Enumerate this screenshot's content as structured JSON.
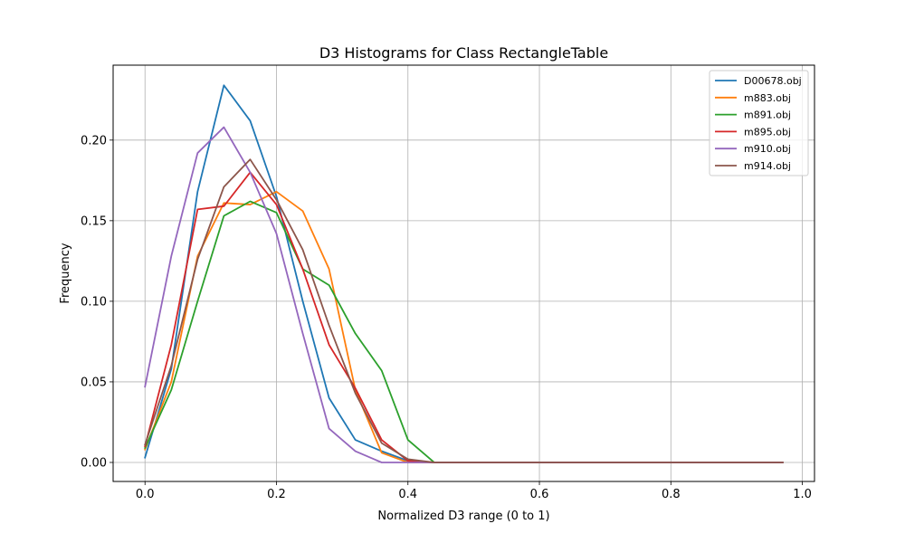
{
  "chart_data": {
    "type": "line",
    "title": "D3 Histograms for Class RectangleTable",
    "xlabel": "Normalized D3 range (0 to 1)",
    "ylabel": "Frequency",
    "xlim": [
      -0.0485,
      1.0185
    ],
    "ylim": [
      -0.0118,
      0.2465
    ],
    "xticks": [
      0.0,
      0.2,
      0.4,
      0.6,
      0.8,
      1.0
    ],
    "xtick_labels": [
      "0.0",
      "0.2",
      "0.4",
      "0.6",
      "0.8",
      "1.0"
    ],
    "yticks": [
      0.0,
      0.05,
      0.1,
      0.15,
      0.2
    ],
    "ytick_labels": [
      "0.00",
      "0.05",
      "0.10",
      "0.15",
      "0.20"
    ],
    "grid": true,
    "legend_position": "top-right",
    "x": [
      0.0,
      0.04,
      0.08,
      0.12,
      0.16,
      0.2,
      0.24,
      0.28,
      0.32,
      0.36,
      0.4,
      0.44,
      0.48,
      0.52,
      0.56,
      0.6,
      0.64,
      0.68,
      0.72,
      0.76,
      0.8,
      0.84,
      0.88,
      0.92,
      0.97
    ],
    "series": [
      {
        "name": "D00678.obj",
        "color": "#1f77b4",
        "values": [
          0.003,
          0.058,
          0.168,
          0.234,
          0.212,
          0.165,
          0.1,
          0.04,
          0.014,
          0.007,
          0.001,
          0,
          0,
          0,
          0,
          0,
          0,
          0,
          0,
          0,
          0,
          0,
          0,
          0,
          0
        ]
      },
      {
        "name": "m883.obj",
        "color": "#ff7f0e",
        "values": [
          0.008,
          0.05,
          0.128,
          0.161,
          0.16,
          0.168,
          0.156,
          0.12,
          0.045,
          0.006,
          0.0,
          0,
          0,
          0,
          0,
          0,
          0,
          0,
          0,
          0,
          0,
          0,
          0,
          0,
          0
        ]
      },
      {
        "name": "m891.obj",
        "color": "#2ca02c",
        "values": [
          0.009,
          0.045,
          0.1,
          0.153,
          0.162,
          0.155,
          0.12,
          0.11,
          0.08,
          0.057,
          0.014,
          0.0,
          0,
          0,
          0,
          0,
          0,
          0,
          0,
          0,
          0,
          0,
          0,
          0,
          0
        ]
      },
      {
        "name": "m895.obj",
        "color": "#d62728",
        "values": [
          0.01,
          0.073,
          0.157,
          0.159,
          0.18,
          0.16,
          0.12,
          0.073,
          0.046,
          0.014,
          0.001,
          0,
          0,
          0,
          0,
          0,
          0,
          0,
          0,
          0,
          0,
          0,
          0,
          0,
          0
        ]
      },
      {
        "name": "m910.obj",
        "color": "#9467bd",
        "values": [
          0.047,
          0.128,
          0.192,
          0.208,
          0.18,
          0.142,
          0.08,
          0.021,
          0.007,
          0.0,
          0,
          0,
          0,
          0,
          0,
          0,
          0,
          0,
          0,
          0,
          0,
          0,
          0,
          0,
          0
        ]
      },
      {
        "name": "m914.obj",
        "color": "#8c564b",
        "values": [
          0.011,
          0.06,
          0.126,
          0.171,
          0.188,
          0.163,
          0.132,
          0.085,
          0.043,
          0.012,
          0.002,
          0,
          0,
          0,
          0,
          0,
          0,
          0,
          0,
          0,
          0,
          0,
          0,
          0,
          0
        ]
      }
    ]
  }
}
